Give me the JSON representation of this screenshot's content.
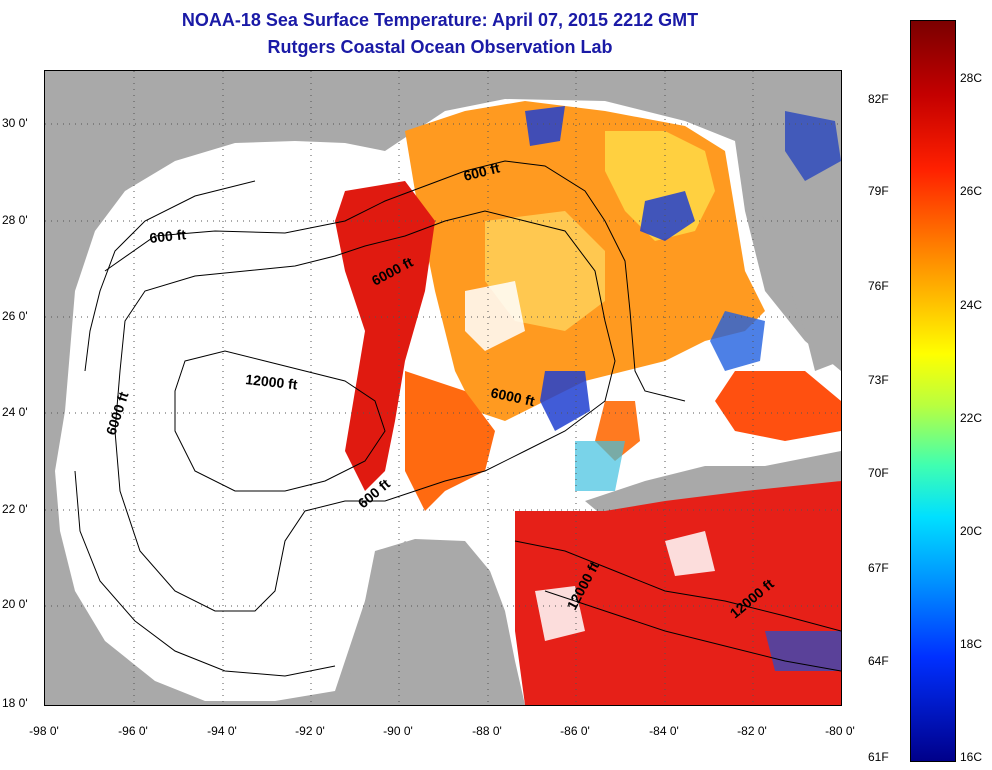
{
  "title": {
    "line1": "NOAA-18 Sea Surface Temperature:  April 07, 2015 2212 GMT",
    "line2": "Rutgers Coastal Ocean Observation Lab"
  },
  "axes": {
    "y_ticks": [
      "30 0'",
      "28 0'",
      "26 0'",
      "24 0'",
      "22 0'",
      "20 0'",
      "18 0'"
    ],
    "x_ticks": [
      "-98 0'",
      "-96 0'",
      "-94 0'",
      "-92 0'",
      "-90 0'",
      "-88 0'",
      "-86 0'",
      "-84 0'",
      "-82 0'",
      "-80 0'"
    ]
  },
  "colorbar": {
    "fahrenheit": [
      "82F",
      "79F",
      "76F",
      "73F",
      "70F",
      "67F",
      "64F",
      "61F"
    ],
    "celsius": [
      "28C",
      "26C",
      "24C",
      "22C",
      "20C",
      "18C",
      "16C"
    ]
  },
  "contours": {
    "labels": [
      "600 ft",
      "600 ft",
      "6000 ft",
      "12000 ft",
      "6000 ft",
      "6000 ft",
      "600 ft",
      "12000 ft",
      "12000 ft"
    ]
  },
  "colors": {
    "title": "#1a1aa6",
    "land": "#a9a9a9",
    "nodata": "#ffffff",
    "warm": "#e01a10",
    "mid": "#ff8a20",
    "cool": "#2040d0"
  }
}
